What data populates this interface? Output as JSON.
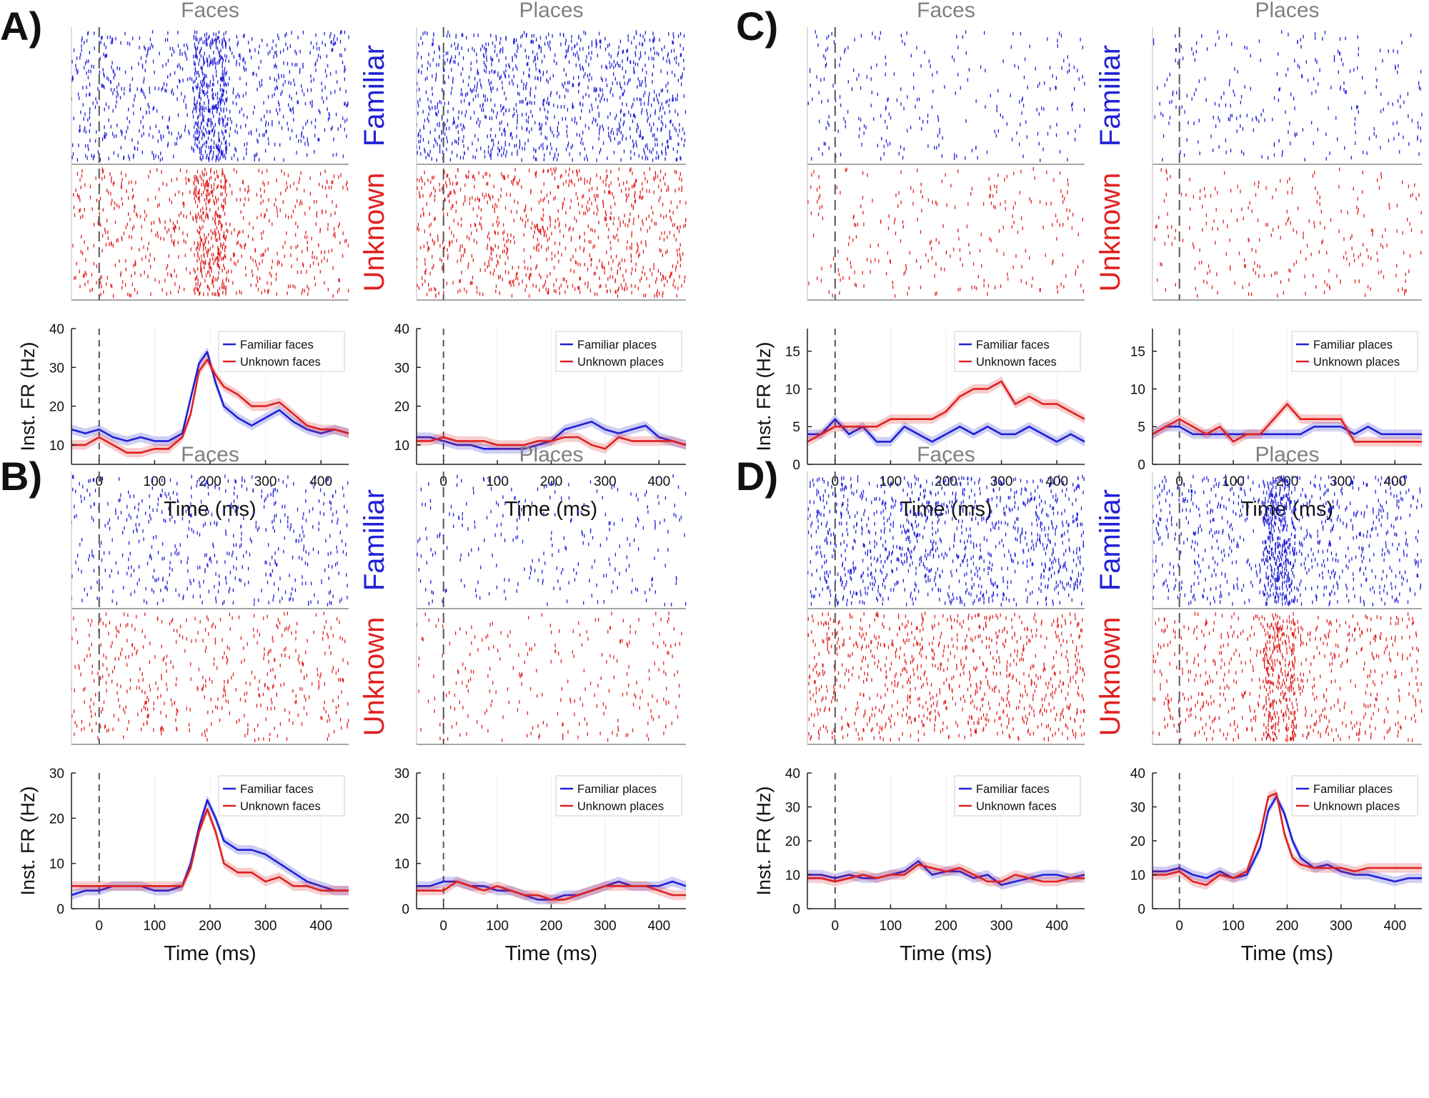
{
  "figure": {
    "col_titles": {
      "faces": "Faces",
      "places": "Places"
    },
    "row_labels": {
      "familiar": "Familiar",
      "unknown": "Unknown"
    },
    "ylabel": "Inst. FR (Hz)",
    "xlabel": "Time (ms)",
    "colors": {
      "familiar": "#2020d8",
      "unknown": "#e02020",
      "title_gray": "#7f7f7f",
      "axis": "#222222"
    }
  },
  "chart_data": [
    {
      "panel": "A",
      "condition": "faces",
      "type": "line",
      "title": "Faces",
      "xlabel": "Time (ms)",
      "ylabel": "Inst. FR (Hz)",
      "xlim": [
        -50,
        450
      ],
      "ylim": [
        5,
        40
      ],
      "xticks": [
        0,
        100,
        200,
        300,
        400
      ],
      "yticks": [
        10,
        20,
        30,
        40
      ],
      "raster_density": {
        "familiar": "high",
        "unknown": "high"
      },
      "x": [
        -50,
        -25,
        0,
        25,
        50,
        75,
        100,
        125,
        150,
        165,
        180,
        195,
        210,
        225,
        250,
        275,
        300,
        325,
        350,
        375,
        400,
        425,
        450
      ],
      "series": [
        {
          "name": "Familiar faces",
          "values": [
            14,
            13,
            14,
            12,
            11,
            12,
            11,
            11,
            13,
            22,
            31,
            34,
            26,
            20,
            17,
            15,
            17,
            19,
            16,
            14,
            13,
            14,
            13
          ]
        },
        {
          "name": "Unknown faces",
          "values": [
            10,
            10,
            12,
            10,
            8,
            8,
            9,
            9,
            12,
            18,
            29,
            32,
            28,
            25,
            23,
            20,
            20,
            21,
            18,
            15,
            14,
            14,
            13
          ]
        }
      ]
    },
    {
      "panel": "A",
      "condition": "places",
      "type": "line",
      "title": "Places",
      "xlabel": "Time (ms)",
      "ylabel": "",
      "xlim": [
        -50,
        450
      ],
      "ylim": [
        5,
        40
      ],
      "xticks": [
        0,
        100,
        200,
        300,
        400
      ],
      "yticks": [
        10,
        20,
        30,
        40
      ],
      "raster_density": {
        "familiar": "high",
        "unknown": "high"
      },
      "x": [
        -50,
        -25,
        0,
        25,
        50,
        75,
        100,
        125,
        150,
        175,
        200,
        225,
        250,
        275,
        300,
        325,
        350,
        375,
        400,
        425,
        450
      ],
      "series": [
        {
          "name": "Familiar places",
          "values": [
            12,
            12,
            11,
            10,
            10,
            9,
            9,
            9,
            9,
            10,
            11,
            14,
            15,
            16,
            14,
            13,
            14,
            15,
            12,
            11,
            10
          ]
        },
        {
          "name": "Unknown places",
          "values": [
            11,
            11,
            12,
            11,
            11,
            11,
            10,
            10,
            10,
            11,
            11,
            12,
            12,
            10,
            9,
            12,
            11,
            11,
            11,
            11,
            10
          ]
        }
      ]
    },
    {
      "panel": "C",
      "condition": "faces",
      "type": "line",
      "title": "Faces",
      "xlabel": "Time (ms)",
      "ylabel": "Inst. FR (Hz)",
      "xlim": [
        -50,
        450
      ],
      "ylim": [
        0,
        18
      ],
      "xticks": [
        0,
        100,
        200,
        300,
        400
      ],
      "yticks": [
        0,
        5,
        10,
        15
      ],
      "raster_density": {
        "familiar": "low",
        "unknown": "low"
      },
      "x": [
        -50,
        -25,
        0,
        25,
        50,
        75,
        100,
        125,
        150,
        175,
        200,
        225,
        250,
        275,
        300,
        325,
        350,
        375,
        400,
        425,
        450
      ],
      "series": [
        {
          "name": "Familiar faces",
          "values": [
            4,
            4,
            6,
            4,
            5,
            3,
            3,
            5,
            4,
            3,
            4,
            5,
            4,
            5,
            4,
            4,
            5,
            4,
            3,
            4,
            3
          ]
        },
        {
          "name": "Unknown faces",
          "values": [
            3,
            4,
            5,
            5,
            5,
            5,
            6,
            6,
            6,
            6,
            7,
            9,
            10,
            10,
            11,
            8,
            9,
            8,
            8,
            7,
            6
          ]
        }
      ]
    },
    {
      "panel": "C",
      "condition": "places",
      "type": "line",
      "title": "Places",
      "xlabel": "Time (ms)",
      "ylabel": "",
      "xlim": [
        -50,
        450
      ],
      "ylim": [
        0,
        18
      ],
      "xticks": [
        0,
        100,
        200,
        300,
        400
      ],
      "yticks": [
        0,
        5,
        10,
        15
      ],
      "raster_density": {
        "familiar": "low",
        "unknown": "low"
      },
      "x": [
        -50,
        -25,
        0,
        25,
        50,
        75,
        100,
        125,
        150,
        175,
        200,
        225,
        250,
        275,
        300,
        325,
        350,
        375,
        400,
        425,
        450
      ],
      "series": [
        {
          "name": "Familiar places",
          "values": [
            4,
            5,
            5,
            4,
            4,
            4,
            4,
            4,
            4,
            4,
            4,
            4,
            5,
            5,
            5,
            4,
            5,
            4,
            4,
            4,
            4
          ]
        },
        {
          "name": "Unknown places",
          "values": [
            4,
            5,
            6,
            5,
            4,
            5,
            3,
            4,
            4,
            6,
            8,
            6,
            6,
            6,
            6,
            3,
            3,
            3,
            3,
            3,
            3
          ]
        }
      ]
    },
    {
      "panel": "B",
      "condition": "faces",
      "type": "line",
      "title": "Faces",
      "xlabel": "Time (ms)",
      "ylabel": "Inst. FR (Hz)",
      "xlim": [
        -50,
        450
      ],
      "ylim": [
        0,
        30
      ],
      "xticks": [
        0,
        100,
        200,
        300,
        400
      ],
      "yticks": [
        0,
        10,
        20,
        30
      ],
      "raster_density": {
        "familiar": "medium",
        "unknown": "medium"
      },
      "x": [
        -50,
        -25,
        0,
        25,
        50,
        75,
        100,
        125,
        150,
        165,
        180,
        195,
        210,
        225,
        250,
        275,
        300,
        325,
        350,
        375,
        400,
        425,
        450
      ],
      "series": [
        {
          "name": "Familiar faces",
          "values": [
            3,
            4,
            4,
            5,
            5,
            5,
            4,
            4,
            5,
            10,
            18,
            24,
            20,
            15,
            13,
            13,
            12,
            10,
            8,
            6,
            5,
            4,
            4
          ]
        },
        {
          "name": "Unknown faces",
          "values": [
            5,
            5,
            5,
            5,
            5,
            5,
            5,
            5,
            5,
            9,
            17,
            22,
            17,
            10,
            8,
            8,
            6,
            7,
            5,
            5,
            4,
            4,
            4
          ]
        }
      ]
    },
    {
      "panel": "B",
      "condition": "places",
      "type": "line",
      "title": "Places",
      "xlabel": "Time (ms)",
      "ylabel": "",
      "xlim": [
        -50,
        450
      ],
      "ylim": [
        0,
        30
      ],
      "xticks": [
        0,
        100,
        200,
        300,
        400
      ],
      "yticks": [
        0,
        10,
        20,
        30
      ],
      "raster_density": {
        "familiar": "low",
        "unknown": "low"
      },
      "x": [
        -50,
        -25,
        0,
        25,
        50,
        75,
        100,
        125,
        150,
        175,
        200,
        225,
        250,
        275,
        300,
        325,
        350,
        375,
        400,
        425,
        450
      ],
      "series": [
        {
          "name": "Familiar places",
          "values": [
            5,
            5,
            6,
            6,
            5,
            5,
            4,
            4,
            3,
            2,
            2,
            3,
            3,
            4,
            5,
            6,
            5,
            5,
            5,
            6,
            5
          ]
        },
        {
          "name": "Unknown places",
          "values": [
            4,
            4,
            4,
            6,
            5,
            4,
            5,
            4,
            3,
            3,
            2,
            2,
            3,
            4,
            5,
            5,
            5,
            5,
            4,
            3,
            3
          ]
        }
      ]
    },
    {
      "panel": "D",
      "condition": "faces",
      "type": "line",
      "title": "Faces",
      "xlabel": "Time (ms)",
      "ylabel": "Inst. FR (Hz)",
      "xlim": [
        -50,
        450
      ],
      "ylim": [
        0,
        40
      ],
      "xticks": [
        0,
        100,
        200,
        300,
        400
      ],
      "yticks": [
        0,
        10,
        20,
        30,
        40
      ],
      "raster_density": {
        "familiar": "high",
        "unknown": "high"
      },
      "x": [
        -50,
        -25,
        0,
        25,
        50,
        75,
        100,
        125,
        150,
        175,
        200,
        225,
        250,
        275,
        300,
        325,
        350,
        375,
        400,
        425,
        450
      ],
      "series": [
        {
          "name": "Familiar faces",
          "values": [
            10,
            10,
            9,
            10,
            9,
            9,
            10,
            11,
            14,
            10,
            11,
            11,
            9,
            10,
            7,
            8,
            9,
            10,
            10,
            9,
            10
          ]
        },
        {
          "name": "Unknown faces",
          "values": [
            9,
            9,
            8,
            9,
            10,
            9,
            10,
            10,
            13,
            12,
            11,
            12,
            10,
            8,
            8,
            10,
            9,
            8,
            8,
            9,
            9
          ]
        }
      ]
    },
    {
      "panel": "D",
      "condition": "places",
      "type": "line",
      "title": "Places",
      "xlabel": "Time (ms)",
      "ylabel": "",
      "xlim": [
        -50,
        450
      ],
      "ylim": [
        0,
        40
      ],
      "xticks": [
        0,
        100,
        200,
        300,
        400
      ],
      "yticks": [
        0,
        10,
        20,
        30,
        40
      ],
      "raster_density": {
        "familiar": "high",
        "unknown": "high"
      },
      "x": [
        -50,
        -25,
        0,
        25,
        50,
        75,
        100,
        125,
        150,
        165,
        180,
        195,
        210,
        225,
        250,
        275,
        300,
        325,
        350,
        375,
        400,
        425,
        450
      ],
      "series": [
        {
          "name": "Familiar places",
          "values": [
            11,
            11,
            12,
            10,
            9,
            11,
            9,
            10,
            18,
            29,
            33,
            28,
            20,
            15,
            12,
            13,
            11,
            10,
            10,
            9,
            8,
            9,
            9
          ]
        },
        {
          "name": "Unknown places",
          "values": [
            10,
            10,
            11,
            8,
            7,
            10,
            9,
            11,
            22,
            33,
            34,
            22,
            15,
            13,
            12,
            12,
            12,
            11,
            12,
            12,
            12,
            12,
            12
          ]
        }
      ]
    }
  ]
}
